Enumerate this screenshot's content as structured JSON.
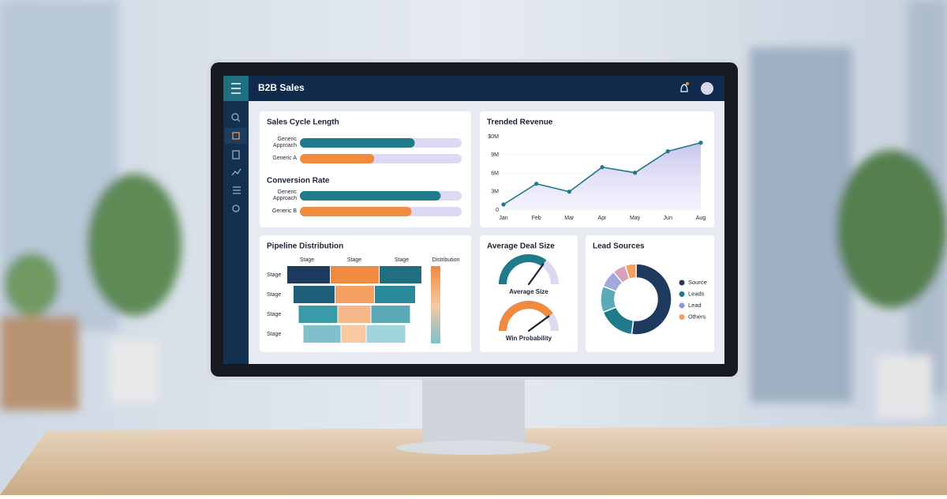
{
  "header": {
    "title": "B2B Sales"
  },
  "sales_cycle": {
    "type": "bar",
    "title": "Sales Cycle Length",
    "categories": [
      "Generic Approach",
      "Generic A"
    ],
    "values": [
      71,
      46
    ],
    "colors": [
      "#1f7a8c",
      "#f08a3e"
    ],
    "xlim": [
      0,
      100
    ]
  },
  "conversion": {
    "type": "bar",
    "title": "Conversion Rate",
    "categories": [
      "Generic Approach",
      "Generic B"
    ],
    "values": [
      87,
      69
    ],
    "colors": [
      "#1f7a8c",
      "#f08a3e"
    ],
    "xlim": [
      0,
      100
    ]
  },
  "revenue": {
    "type": "line",
    "title": "Trended Revenue",
    "categories": [
      "Jan",
      "Feb",
      "Mar",
      "Apr",
      "May",
      "Jun",
      "Aug"
    ],
    "values": [
      0.9,
      4.3,
      3.0,
      7.0,
      6.1,
      9.6,
      11.0
    ],
    "color": "#1f7a8c",
    "ylim": [
      0,
      12
    ],
    "yticks": [
      0,
      {
        "value": 3,
        "label": "3M"
      },
      {
        "value": 6,
        "label": "6M"
      },
      {
        "value": 9,
        "label": "9M"
      }
    ],
    "top_label": "$0M"
  },
  "pipeline": {
    "title": "Pipeline Distribution",
    "columns": [
      "Stage",
      "Stage",
      "Stage",
      "Distribution"
    ],
    "rows": [
      "Stage",
      "Stage",
      "Stage",
      "Stage"
    ],
    "segments": [
      [
        55,
        62,
        54
      ],
      [
        53,
        50,
        52
      ],
      [
        50,
        42,
        50
      ],
      [
        48,
        32,
        50
      ]
    ],
    "colors": [
      [
        "#1e3a5f",
        "#f08a3e",
        "#1f6f80"
      ],
      [
        "#1f5f7a",
        "#f4a060",
        "#2a8a9a"
      ],
      [
        "#3a9aa8",
        "#f6b888",
        "#5aaab8"
      ],
      [
        "#7fc0cc",
        "#f8c8a0",
        "#a0d4dc"
      ]
    ]
  },
  "deal_size": {
    "title": "Average Deal Size",
    "max": 100,
    "gauges": [
      {
        "label": "Average Size",
        "value": 70,
        "color": "#1f7a8c"
      },
      {
        "label": "Win Probability",
        "value": 80,
        "color": "#f08a3e"
      }
    ]
  },
  "lead_sources": {
    "type": "pie",
    "title": "Lead Sources",
    "slices": [
      {
        "value": 52,
        "color": "#1e3a5f"
      },
      {
        "value": 17,
        "color": "#1f7a8c"
      },
      {
        "value": 12,
        "color": "#5aaab8"
      },
      {
        "value": 8,
        "color": "#a3a8dc"
      },
      {
        "value": 6,
        "color": "#d9a0b8"
      },
      {
        "value": 5,
        "color": "#f4a060"
      }
    ],
    "legend": [
      {
        "name": "Source",
        "color": "#1e3a5f"
      },
      {
        "name": "Leads",
        "color": "#1f7a8c"
      },
      {
        "name": "Lead",
        "color": "#8f95d4"
      },
      {
        "name": "Others",
        "color": "#f4a060"
      }
    ]
  }
}
